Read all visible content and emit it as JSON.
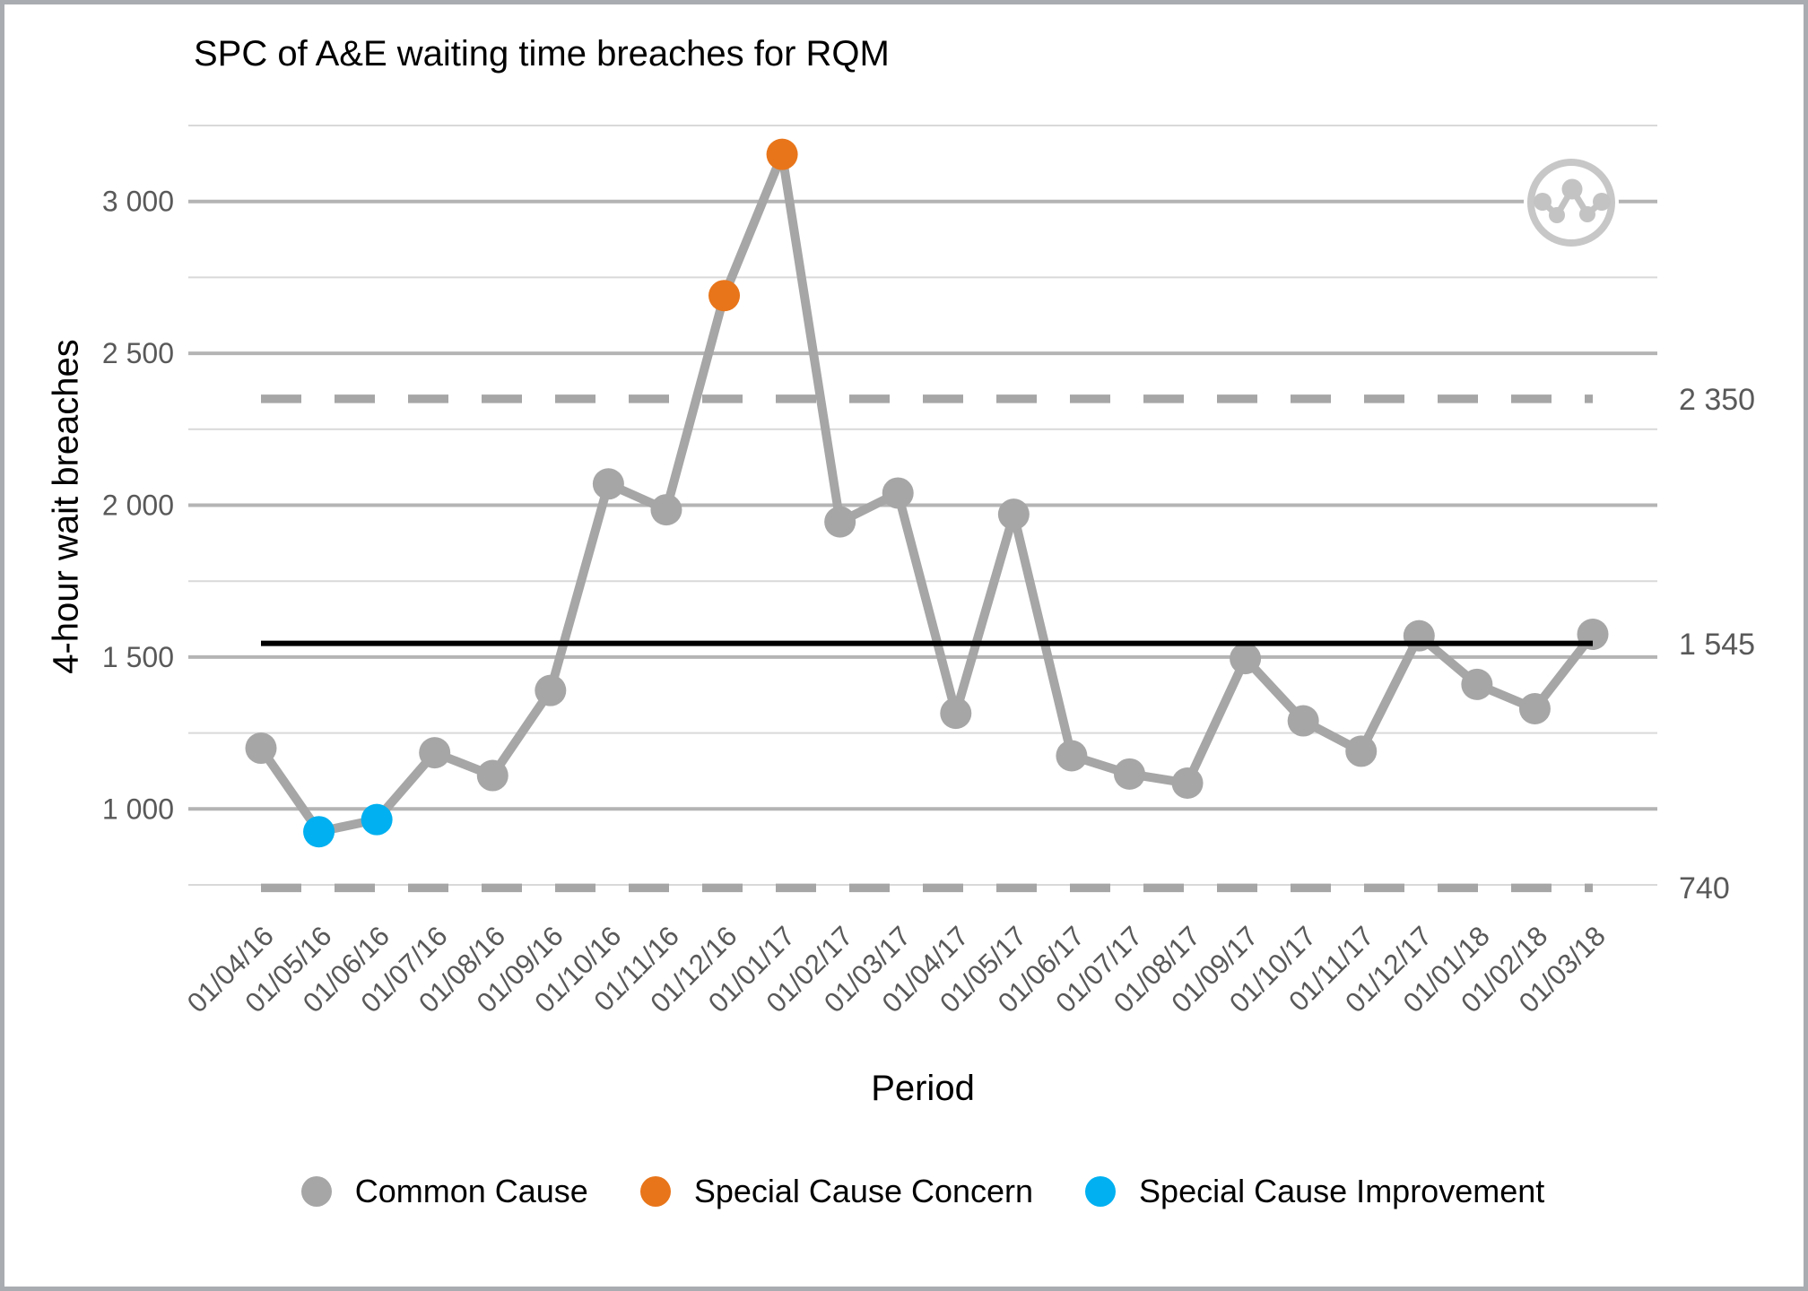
{
  "chart": {
    "title": "SPC of A&E waiting time breaches for RQM",
    "xlabel": "Period",
    "ylabel": "4-hour wait breaches"
  },
  "icons": {
    "watermark": "line-chart-circle-icon"
  },
  "chart_data": {
    "type": "line",
    "title": "SPC of A&E waiting time breaches for RQM",
    "xlabel": "Period",
    "ylabel": "4-hour wait breaches",
    "ylim": [
      750,
      3250
    ],
    "grid": "horizontal, every 250 units",
    "legend_position": "bottom",
    "yticks": [
      {
        "value": 1000,
        "label": "1 000"
      },
      {
        "value": 1500,
        "label": "1 500"
      },
      {
        "value": 2000,
        "label": "2 000"
      },
      {
        "value": 2500,
        "label": "2 500"
      },
      {
        "value": 3000,
        "label": "3 000"
      }
    ],
    "grid_minor": [
      750,
      1250,
      1750,
      2250,
      2750,
      3250
    ],
    "categories": [
      "01/04/16",
      "01/05/16",
      "01/06/16",
      "01/07/16",
      "01/08/16",
      "01/09/16",
      "01/10/16",
      "01/11/16",
      "01/12/16",
      "01/01/17",
      "01/02/17",
      "01/03/17",
      "01/04/17",
      "01/05/17",
      "01/06/17",
      "01/07/17",
      "01/08/17",
      "01/09/17",
      "01/10/17",
      "01/11/17",
      "01/12/17",
      "01/01/18",
      "01/02/18",
      "01/03/18"
    ],
    "series": [
      {
        "name": "4-hour wait breaches",
        "values": [
          1200,
          925,
          965,
          1185,
          1110,
          1390,
          2070,
          1985,
          2690,
          3155,
          1945,
          2040,
          1315,
          1970,
          1175,
          1115,
          1085,
          1495,
          1290,
          1190,
          1570,
          1410,
          1330,
          1575
        ],
        "point_classes": [
          "common",
          "improvement",
          "improvement",
          "common",
          "common",
          "common",
          "common",
          "common",
          "concern",
          "concern",
          "common",
          "common",
          "common",
          "common",
          "common",
          "common",
          "common",
          "common",
          "common",
          "common",
          "common",
          "common",
          "common",
          "common"
        ]
      }
    ],
    "control_lines": {
      "ucl": {
        "value": 2350,
        "label": "2 350",
        "style": "dashed"
      },
      "mean": {
        "value": 1545,
        "label": "1 545",
        "style": "solid"
      },
      "lcl": {
        "value": 740,
        "label": "740",
        "style": "dashed"
      }
    },
    "legend": [
      {
        "label": "Common Cause",
        "color": "#a6a6a6"
      },
      {
        "label": "Special Cause Concern",
        "color": "#e8751a"
      },
      {
        "label": "Special Cause Improvement",
        "color": "#00b0f0"
      }
    ],
    "colors": {
      "common": "#a6a6a6",
      "concern": "#e8751a",
      "improvement": "#00b0f0",
      "line": "#a6a6a6",
      "grid_major": "#b4b4b4",
      "grid_minor": "#d9d9d9",
      "limit": "#a6a6a6",
      "mean": "#000000",
      "tick_text": "#595959"
    }
  }
}
